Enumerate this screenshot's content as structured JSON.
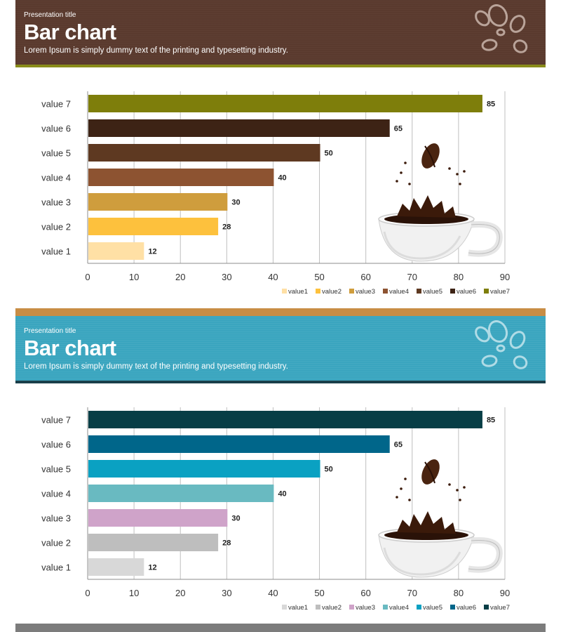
{
  "slides": [
    {
      "presentation_title": "Presentation title",
      "title": "Bar chart",
      "subtitle": "Lorem Ipsum is simply dummy text of the printing and typesetting industry.",
      "colors": {
        "bars": [
          "#ffe0a5",
          "#fdc13d",
          "#cf9d3d",
          "#8d5331",
          "#5e3921",
          "#3d2315",
          "#7e7e0b"
        ]
      }
    },
    {
      "presentation_title": "Presentation title",
      "title": "Bar chart",
      "subtitle": "Lorem Ipsum is simply dummy text of the printing and typesetting industry.",
      "colors": {
        "bars": [
          "#d8d8d8",
          "#bebebe",
          "#cfa3c9",
          "#69bac1",
          "#0aa1c2",
          "#00668a",
          "#073e46"
        ]
      }
    }
  ],
  "chart_data": [
    {
      "type": "bar",
      "orientation": "horizontal",
      "categories": [
        "value 1",
        "value 2",
        "value 3",
        "value 4",
        "value 5",
        "value 6",
        "value 7"
      ],
      "values": [
        12,
        28,
        30,
        40,
        50,
        65,
        85
      ],
      "xlim": [
        0,
        90
      ],
      "xticks": [
        0,
        10,
        20,
        30,
        40,
        50,
        60,
        70,
        80,
        90
      ],
      "legend": [
        "value1",
        "value2",
        "value3",
        "value4",
        "value5",
        "value6",
        "value7"
      ],
      "legend_position": "bottom-right",
      "grid": true
    },
    {
      "type": "bar",
      "orientation": "horizontal",
      "categories": [
        "value 1",
        "value 2",
        "value 3",
        "value 4",
        "value 5",
        "value 6",
        "value 7"
      ],
      "values": [
        12,
        28,
        30,
        40,
        50,
        65,
        85
      ],
      "xlim": [
        0,
        90
      ],
      "xticks": [
        0,
        10,
        20,
        30,
        40,
        50,
        60,
        70,
        80,
        90
      ],
      "legend": [
        "value1",
        "value2",
        "value3",
        "value4",
        "value5",
        "value6",
        "value7"
      ],
      "legend_position": "bottom-right",
      "grid": true
    }
  ]
}
